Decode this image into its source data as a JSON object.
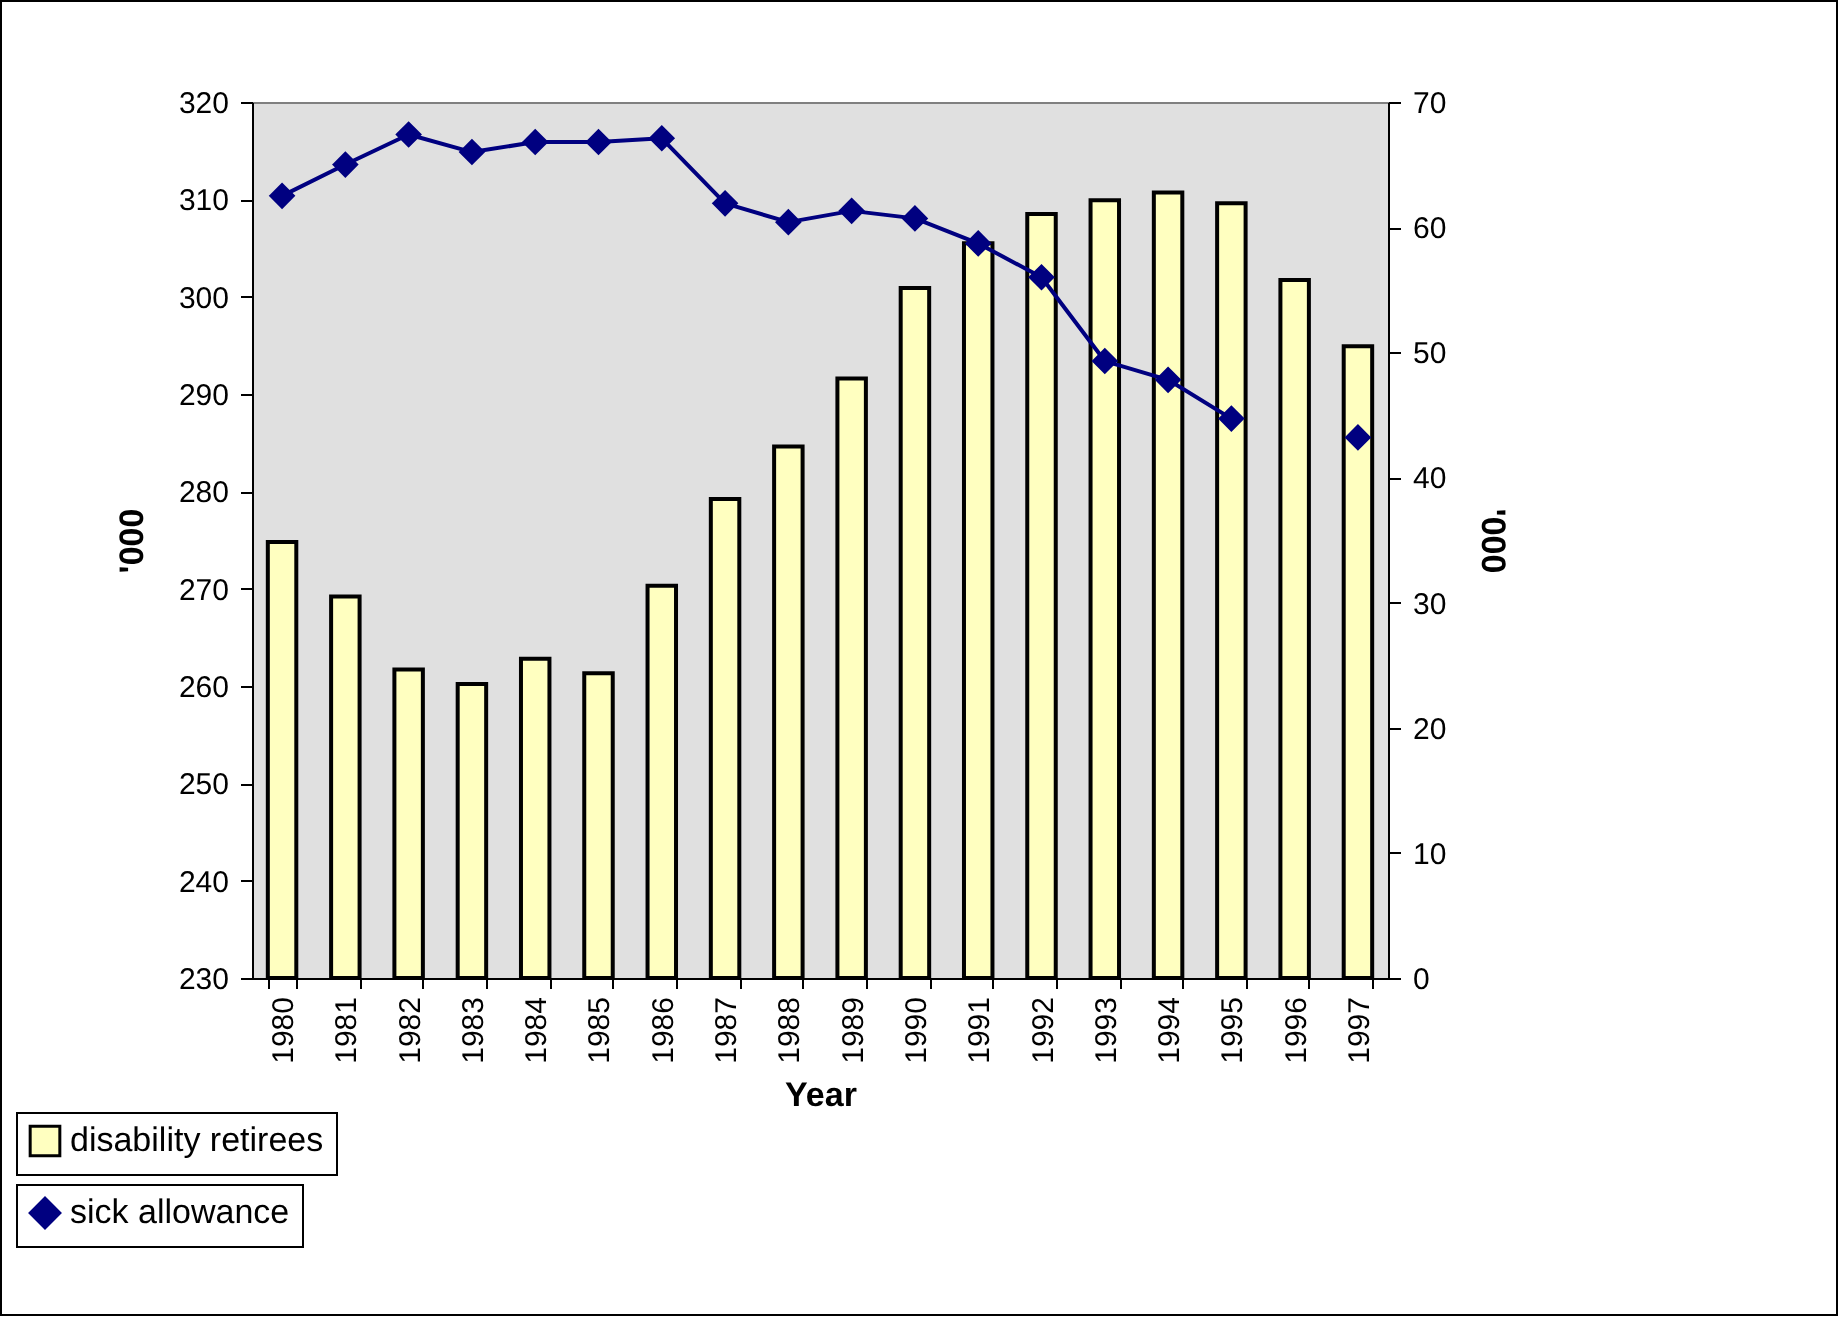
{
  "chart_data": {
    "type": "bar",
    "xlabel": "Year",
    "ylabel": "'000",
    "y2label": "'000",
    "legend": "bottom left",
    "grid": false,
    "categories": [
      "1980",
      "1981",
      "1982",
      "1983",
      "1984",
      "1985",
      "1986",
      "1987",
      "1988",
      "1989",
      "1990",
      "1991",
      "1992",
      "1993",
      "1994",
      "1995",
      "1996",
      "1997"
    ],
    "series": [
      {
        "name": "disability retirees",
        "type": "bar",
        "color": "#ffffc0",
        "values": [
          274.8,
          269.2,
          261.7,
          260.2,
          262.8,
          261.3,
          270.3,
          279.2,
          284.6,
          291.6,
          300.9,
          305.5,
          308.5,
          309.9,
          310.7,
          309.6,
          301.7,
          294.9
        ]
      },
      {
        "name": "sick allowance",
        "type": "line",
        "axis": "y2",
        "color": "#000080",
        "marker": "diamond",
        "values": [
          62.5,
          65.0,
          67.4,
          66.0,
          66.8,
          66.8,
          67.1,
          61.9,
          60.4,
          61.3,
          60.7,
          58.7,
          56.0,
          49.3,
          47.8,
          44.7,
          null,
          43.2
        ]
      }
    ],
    "ylim": [
      230,
      320
    ],
    "yticks": [
      230,
      240,
      250,
      260,
      270,
      280,
      290,
      300,
      310,
      320
    ],
    "y2lim": [
      0,
      70
    ],
    "y2ticks": [
      0,
      10,
      20,
      30,
      40,
      50,
      60,
      70
    ]
  }
}
